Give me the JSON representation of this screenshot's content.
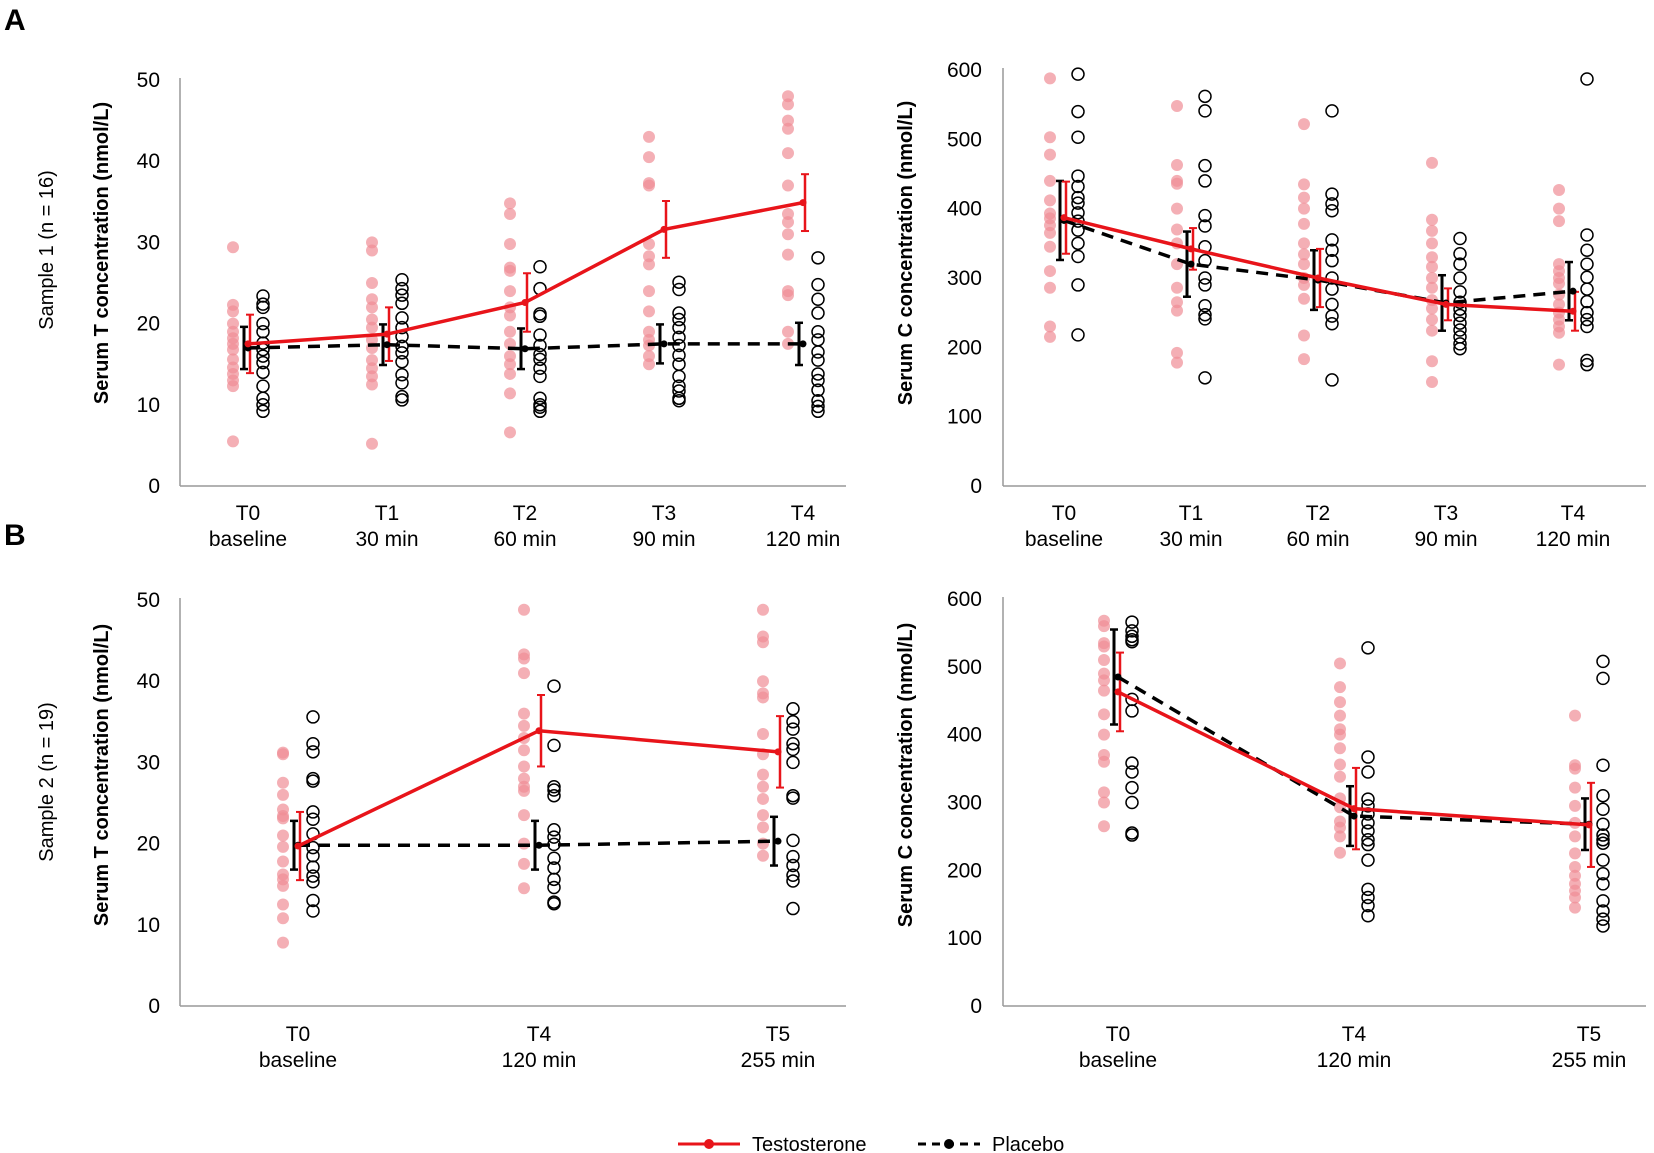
{
  "figure": {
    "panel_a": "A",
    "panel_b": "B",
    "sample_1_label": "Sample 1 (n = 16)",
    "sample_2_label": "Sample 2 (n = 19)"
  },
  "legend": {
    "testosterone": "Testosterone",
    "placebo": "Placebo"
  },
  "colors": {
    "testosterone": "#e8141a",
    "testosterone_points": "#ef8d95",
    "placebo": "#000000"
  },
  "chart_data": [
    {
      "type": "line",
      "panel": "A",
      "ylabel": "Serum T concentration (nmol/L)",
      "ylim": [
        0,
        50
      ],
      "yticks": [
        0,
        10,
        20,
        30,
        40,
        50
      ],
      "categories": [
        {
          "code": "T0",
          "time": "baseline"
        },
        {
          "code": "T1",
          "time": "30 min"
        },
        {
          "code": "T2",
          "time": "60 min"
        },
        {
          "code": "T3",
          "time": "90 min"
        },
        {
          "code": "T4",
          "time": "120 min"
        }
      ],
      "series": [
        {
          "name": "Testosterone",
          "mean": [
            17.5,
            18.7,
            22.6,
            31.6,
            34.9
          ],
          "err": [
            3.6,
            3.3,
            3.6,
            3.5,
            3.5
          ],
          "points": [
            [
              29.4,
              22.3,
              21.5,
              20.0,
              19.0,
              18.2,
              17.5,
              16.8,
              15.6,
              14.6,
              13.8,
              13.0,
              12.3,
              5.5
            ],
            [
              30.0,
              29.0,
              25.0,
              23.0,
              22.0,
              20.5,
              19.5,
              18.0,
              17.0,
              15.5,
              14.5,
              13.5,
              12.5,
              5.2
            ],
            [
              34.8,
              33.5,
              29.8,
              26.9,
              26.5,
              24.0,
              22.0,
              21.0,
              19.0,
              17.5,
              16.0,
              15.0,
              13.8,
              11.4,
              6.6
            ],
            [
              43.0,
              40.5,
              37.3,
              37.0,
              29.8,
              28.3,
              27.3,
              24.0,
              21.5,
              19.0,
              18.0,
              17.3,
              16.0,
              15.0
            ],
            [
              48.0,
              47.0,
              45.0,
              44.0,
              41.0,
              37.0,
              33.5,
              32.5,
              31.0,
              28.5,
              24.0,
              23.5,
              19.0,
              17.5
            ]
          ]
        },
        {
          "name": "Placebo",
          "mean": [
            17.0,
            17.4,
            16.9,
            17.5,
            17.5
          ],
          "err": [
            2.6,
            2.5,
            2.5,
            2.4,
            2.6
          ],
          "points": [
            [
              23.4,
              22.4,
              22.0,
              20.0,
              19.0,
              17.6,
              16.8,
              16.0,
              15.2,
              14.0,
              12.3,
              10.8,
              10.0,
              9.2
            ],
            [
              25.4,
              24.3,
              23.5,
              22.5,
              20.7,
              19.5,
              18.4,
              17.2,
              16.4,
              15.3,
              13.7,
              12.7,
              11.0,
              10.6
            ],
            [
              27.0,
              24.3,
              21.2,
              20.9,
              18.6,
              17.3,
              16.2,
              15.6,
              14.5,
              13.5,
              10.8,
              10.0,
              9.7,
              9.2
            ],
            [
              25.1,
              24.2,
              21.3,
              20.5,
              19.5,
              18.3,
              17.3,
              16.1,
              15.0,
              13.5,
              12.3,
              11.7,
              10.8,
              10.5
            ],
            [
              28.1,
              24.8,
              23.0,
              21.3,
              19.0,
              18.0,
              16.5,
              15.5,
              13.8,
              13.0,
              11.8,
              10.5,
              9.8,
              9.2
            ]
          ]
        }
      ]
    },
    {
      "type": "line",
      "panel": "A",
      "ylabel": "Serum C concentration (nmol/L)",
      "ylim": [
        0,
        600
      ],
      "yticks": [
        0,
        100,
        200,
        300,
        400,
        500,
        600
      ],
      "categories": [
        {
          "code": "T0",
          "time": "baseline"
        },
        {
          "code": "T1",
          "time": "30 min"
        },
        {
          "code": "T2",
          "time": "60 min"
        },
        {
          "code": "T3",
          "time": "90 min"
        },
        {
          "code": "T4",
          "time": "120 min"
        }
      ],
      "series": [
        {
          "name": "Testosterone",
          "mean": [
            387,
            342,
            300,
            262,
            252
          ],
          "err": [
            52,
            30,
            42,
            23,
            28
          ],
          "points": [
            [
              588,
              503,
              478,
              440,
              412,
              393,
              386,
              376,
              365,
              345,
              310,
              286,
              230,
              215
            ],
            [
              548,
              463,
              440,
              436,
              400,
              370,
              350,
              320,
              286,
              265,
              253,
              192,
              178
            ],
            [
              522,
              435,
              416,
              400,
              378,
              350,
              334,
              320,
              300,
              290,
              270,
              217,
              183
            ],
            [
              466,
              384,
              368,
              350,
              330,
              316,
              300,
              286,
              268,
              256,
              240,
              224,
              180,
              150
            ],
            [
              427,
              400,
              382,
              320,
              310,
              300,
              292,
              276,
              262,
              250,
              240,
              230,
              221,
              175
            ]
          ]
        },
        {
          "name": "Placebo",
          "mean": [
            383,
            320,
            297,
            264,
            281
          ],
          "err": [
            57,
            47,
            43,
            40,
            42
          ],
          "points": [
            [
              594,
              540,
              503,
              447,
              432,
              416,
              408,
              394,
              382,
              369,
              350,
              331,
              290,
              218
            ],
            [
              562,
              541,
              462,
              440,
              390,
              375,
              345,
              325,
              300,
              290,
              260,
              247,
              241,
              156
            ],
            [
              541,
              421,
              407,
              397,
              355,
              340,
              325,
              300,
              284,
              262,
              245,
              234,
              153
            ],
            [
              357,
              335,
              320,
              300,
              280,
              265,
              255,
              246,
              235,
              225,
              215,
              205,
              198
            ],
            [
              587,
              362,
              340,
              320,
              301,
              284,
              266,
              250,
              240,
              230,
              181,
              175
            ]
          ]
        }
      ]
    },
    {
      "type": "line",
      "panel": "B",
      "ylabel": "Serum T concentration (nmol/L)",
      "ylim": [
        0,
        50
      ],
      "yticks": [
        0,
        10,
        20,
        30,
        40,
        50
      ],
      "categories": [
        {
          "code": "T0",
          "time": "baseline"
        },
        {
          "code": "T4",
          "time": "120 min"
        },
        {
          "code": "T5",
          "time": "255 min"
        }
      ],
      "series": [
        {
          "name": "Testosterone",
          "mean": [
            19.7,
            33.9,
            31.3
          ],
          "err": [
            4.2,
            4.4,
            4.4
          ],
          "points": [
            [
              31.2,
              31.0,
              27.5,
              26.0,
              24.2,
              23.4,
              23.1,
              21.0,
              19.6,
              17.8,
              16.2,
              15.6,
              14.8,
              12.5,
              10.8,
              7.8
            ],
            [
              48.8,
              43.3,
              42.8,
              41.0,
              36.0,
              34.5,
              33.0,
              31.5,
              29.5,
              28.0,
              27.0,
              26.5,
              23.5,
              20.0,
              17.5,
              14.5
            ],
            [
              48.8,
              45.5,
              44.8,
              40.0,
              38.5,
              38.0,
              33.5,
              31.0,
              28.5,
              27.0,
              25.5,
              23.5,
              22.0,
              20.0,
              18.5
            ]
          ]
        },
        {
          "name": "Placebo",
          "mean": [
            19.8,
            19.8,
            20.3
          ],
          "err": [
            3.0,
            3.0,
            3.0
          ],
          "points": [
            [
              35.6,
              32.3,
              31.3,
              28.0,
              27.7,
              23.9,
              23.0,
              21.2,
              19.5,
              18.5,
              17.1,
              16.0,
              15.3,
              13.0,
              11.7
            ],
            [
              39.4,
              32.1,
              27.0,
              26.6,
              25.9,
              21.7,
              20.8,
              19.9,
              18.2,
              17.0,
              15.6,
              14.6,
              12.8,
              12.6
            ],
            [
              36.6,
              35.0,
              34.1,
              32.3,
              31.6,
              30.0,
              25.9,
              25.6,
              20.4,
              18.4,
              17.3,
              16.1,
              15.4,
              12.0
            ]
          ]
        }
      ]
    },
    {
      "type": "line",
      "panel": "B",
      "ylabel": "Serum C concentration (nmol/L)",
      "ylim": [
        0,
        600
      ],
      "yticks": [
        0,
        100,
        200,
        300,
        400,
        500,
        600
      ],
      "categories": [
        {
          "code": "T0",
          "time": "baseline"
        },
        {
          "code": "T4",
          "time": "120 min"
        },
        {
          "code": "T5",
          "time": "255 min"
        }
      ],
      "series": [
        {
          "name": "Testosterone",
          "mean": [
            463,
            291,
            267
          ],
          "err": [
            58,
            60,
            62
          ],
          "points": [
            [
              568,
              560,
              535,
              530,
              510,
              490,
              480,
              465,
              430,
              400,
              370,
              360,
              315,
              300,
              265
            ],
            [
              505,
              470,
              448,
              428,
              408,
              400,
              380,
              356,
              338,
              306,
              293,
              272,
              263,
              250,
              226
            ],
            [
              428,
              355,
              350,
              322,
              295,
              270,
              250,
              225,
              205,
              192,
              180,
              170,
              160,
              145
            ]
          ]
        },
        {
          "name": "Placebo",
          "mean": [
            485,
            280,
            268
          ],
          "err": [
            70,
            44,
            38
          ],
          "points": [
            [
              566,
              553,
              545,
              540,
              537,
              452,
              435,
              358,
              345,
              322,
              300,
              255,
              252
            ],
            [
              528,
              367,
              345,
              305,
              295,
              283,
              270,
              258,
              245,
              238,
              215,
              172,
              160,
              148,
              133
            ],
            [
              508,
              483,
              355,
              310,
              290,
              268,
              252,
              245,
              240,
              215,
              195,
              180,
              155,
              140,
              128,
              118
            ]
          ]
        }
      ]
    }
  ]
}
